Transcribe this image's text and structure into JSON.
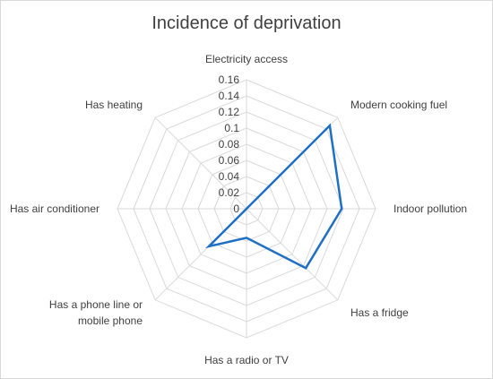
{
  "chart_data": {
    "type": "radar",
    "title": "Incidence of deprivation",
    "categories": [
      "Electricity access",
      "Modern cooking fuel",
      "Indoor pollution",
      "Has a fridge",
      "Has a radio or TV",
      "Has a phone line or mobile phone",
      "Has air conditioner",
      "Has heating"
    ],
    "category_lines": [
      [
        "Electricity access"
      ],
      [
        "Modern cooking fuel"
      ],
      [
        "Indoor pollution"
      ],
      [
        "Has a fridge"
      ],
      [
        "Has a radio or TV"
      ],
      [
        "Has a phone line or",
        "mobile phone"
      ],
      [
        "Has air conditioner"
      ],
      [
        "Has heating"
      ]
    ],
    "values": [
      0.0,
      0.146,
      0.118,
      0.104,
      0.036,
      0.066,
      0.0,
      0.0
    ],
    "ticks": [
      0,
      0.02,
      0.04,
      0.06,
      0.08,
      0.1,
      0.12,
      0.14,
      0.16
    ],
    "rlim": [
      0,
      0.16
    ],
    "grid": true,
    "legend": "none",
    "colors": {
      "series": "#1f6fc5",
      "grid": "#d9d9d9",
      "text": "#404040"
    }
  }
}
